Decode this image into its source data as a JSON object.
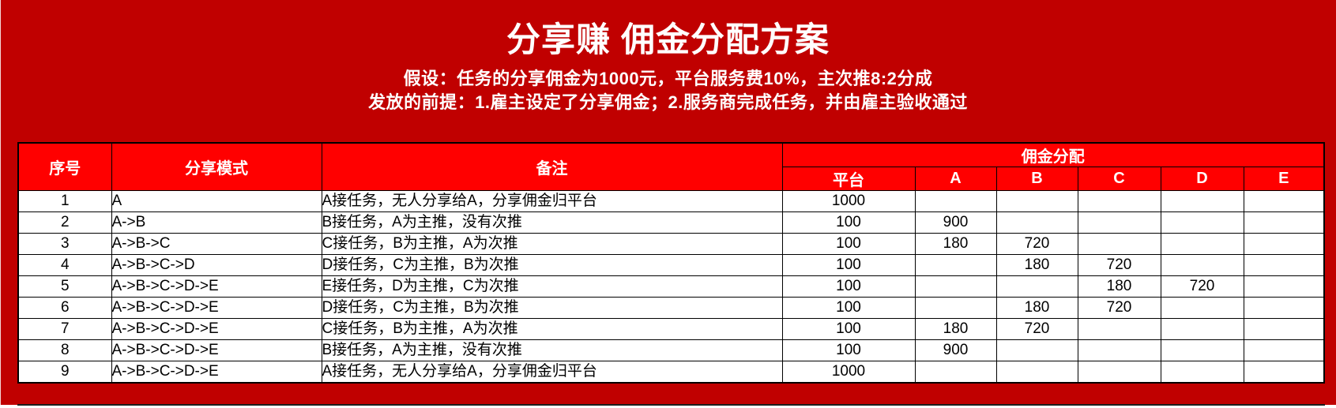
{
  "page": {
    "title": "分享赚 佣金分配方案",
    "subtitle_line1": "假设：任务的分享佣金为1000元，平台服务费10%，主次推8:2分成",
    "subtitle_line2": "发放的前提：1.雇主设定了分享佣金；2.服务商完成任务，并由雇主验收通过"
  },
  "colors": {
    "page_background": "#C00000",
    "header_fill": "#FF0000",
    "header_text": "#FFFFFF",
    "cell_fill": "#FFFFFF",
    "cell_text": "#000000",
    "border": "#000000"
  },
  "table": {
    "headers": {
      "index": "序号",
      "mode": "分享模式",
      "remark": "备注",
      "distribution_group": "佣金分配",
      "distribution_cols": [
        "平台",
        "A",
        "B",
        "C",
        "D",
        "E"
      ]
    },
    "rows": [
      {
        "index": "1",
        "mode": "A",
        "remark": "A接任务，无人分享给A，分享佣金归平台",
        "values": [
          "1000",
          "",
          "",
          "",
          "",
          ""
        ]
      },
      {
        "index": "2",
        "mode": "A->B",
        "remark": "B接任务，A为主推，没有次推",
        "values": [
          "100",
          "900",
          "",
          "",
          "",
          ""
        ]
      },
      {
        "index": "3",
        "mode": "A->B->C",
        "remark": "C接任务，B为主推，A为次推",
        "values": [
          "100",
          "180",
          "720",
          "",
          "",
          ""
        ]
      },
      {
        "index": "4",
        "mode": "A->B->C->D",
        "remark": "D接任务，C为主推，B为次推",
        "values": [
          "100",
          "",
          "180",
          "720",
          "",
          ""
        ]
      },
      {
        "index": "5",
        "mode": "A->B->C->D->E",
        "remark": "E接任务，D为主推，C为次推",
        "values": [
          "100",
          "",
          "",
          "180",
          "720",
          ""
        ]
      },
      {
        "index": "6",
        "mode": "A->B->C->D->E",
        "remark": "D接任务，C为主推，B为次推",
        "values": [
          "100",
          "",
          "180",
          "720",
          "",
          ""
        ]
      },
      {
        "index": "7",
        "mode": "A->B->C->D->E",
        "remark": "C接任务，B为主推，A为次推",
        "values": [
          "100",
          "180",
          "720",
          "",
          "",
          ""
        ]
      },
      {
        "index": "8",
        "mode": "A->B->C->D->E",
        "remark": "B接任务，A为主推，没有次推",
        "values": [
          "100",
          "900",
          "",
          "",
          "",
          ""
        ]
      },
      {
        "index": "9",
        "mode": "A->B->C->D->E",
        "remark": "A接任务，无人分享给A，分享佣金归平台",
        "values": [
          "1000",
          "",
          "",
          "",
          "",
          ""
        ]
      }
    ]
  }
}
